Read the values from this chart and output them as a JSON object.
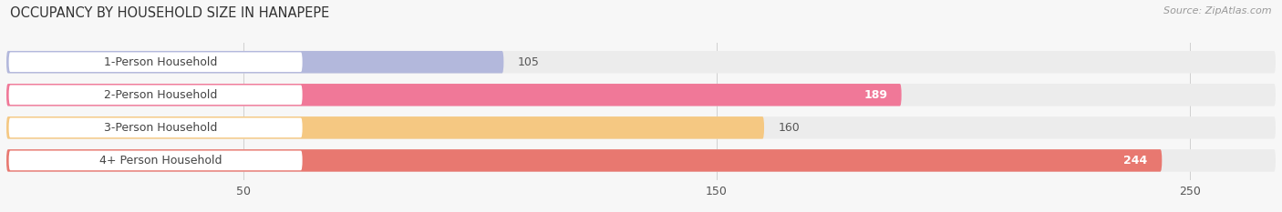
{
  "title": "OCCUPANCY BY HOUSEHOLD SIZE IN HANAPEPE",
  "source": "Source: ZipAtlas.com",
  "categories": [
    "1-Person Household",
    "2-Person Household",
    "3-Person Household",
    "4+ Person Household"
  ],
  "values": [
    105,
    189,
    160,
    244
  ],
  "bar_colors": [
    "#b3b8dc",
    "#f07898",
    "#f5c882",
    "#e87870"
  ],
  "bar_bg_color": "#ececec",
  "label_colors": [
    "#555555",
    "#ffffff",
    "#555555",
    "#ffffff"
  ],
  "xlim": [
    0,
    268
  ],
  "xticks": [
    50,
    150,
    250
  ],
  "figsize": [
    14.06,
    2.33
  ],
  "dpi": 100,
  "bg_color": "#f7f7f7",
  "bar_height": 0.68,
  "bar_gap": 1.0,
  "white_label_bg": "#ffffff",
  "label_text_color": "#444444"
}
